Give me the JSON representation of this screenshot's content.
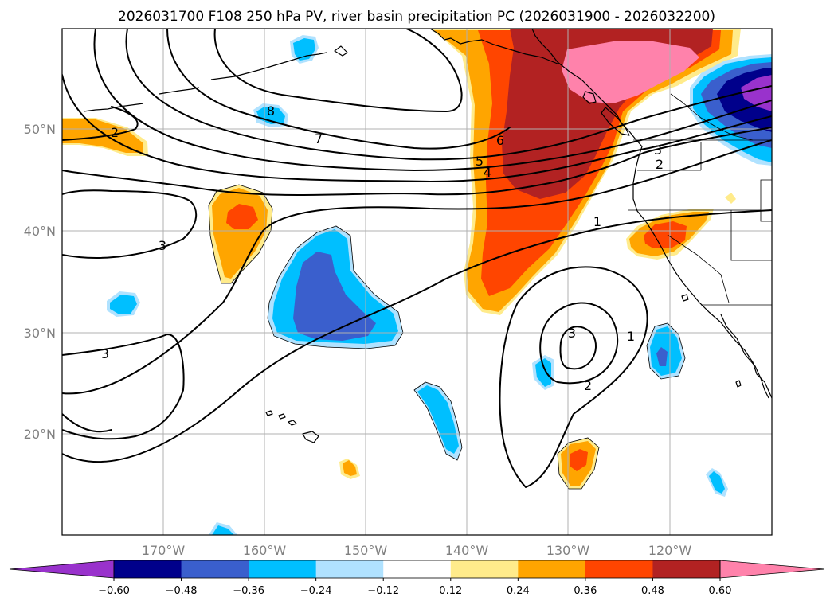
{
  "title": "2026031700 F108 250 hPa PV, river basin precipitation PC (2026031900 - 2026032200)",
  "lat_ticks": [
    "50°N",
    "40°N",
    "30°N",
    "20°N"
  ],
  "lon_ticks": [
    "170°W",
    "160°W",
    "150°W",
    "140°W",
    "130°W",
    "120°W"
  ],
  "pv_contour_labels": [
    "8",
    "7",
    "6",
    "5",
    "4",
    "3",
    "3",
    "3",
    "3",
    "2",
    "2",
    "2",
    "1",
    "1"
  ],
  "colorbar": {
    "ticks": [
      "−0.60",
      "−0.48",
      "−0.36",
      "−0.24",
      "−0.12",
      "0.12",
      "0.24",
      "0.36",
      "0.48",
      "0.60"
    ],
    "colors": [
      "#9932cc",
      "#00008b",
      "#3a5fcd",
      "#00bfff",
      "#b0e2ff",
      "#ffffff",
      "#ffeb8b",
      "#ffa500",
      "#ff4500",
      "#b22222",
      "#ff82ab"
    ],
    "extend": "both"
  },
  "colors": {
    "purple": "#9932cc",
    "navy": "#00008b",
    "royal": "#3a5fcd",
    "sky": "#00bfff",
    "pale_blue": "#b0e2ff",
    "pale_yellow": "#ffeb8b",
    "orange": "#ffa500",
    "red_orange": "#ff4500",
    "firebrick": "#b22222",
    "pink": "#ff82ab"
  }
}
